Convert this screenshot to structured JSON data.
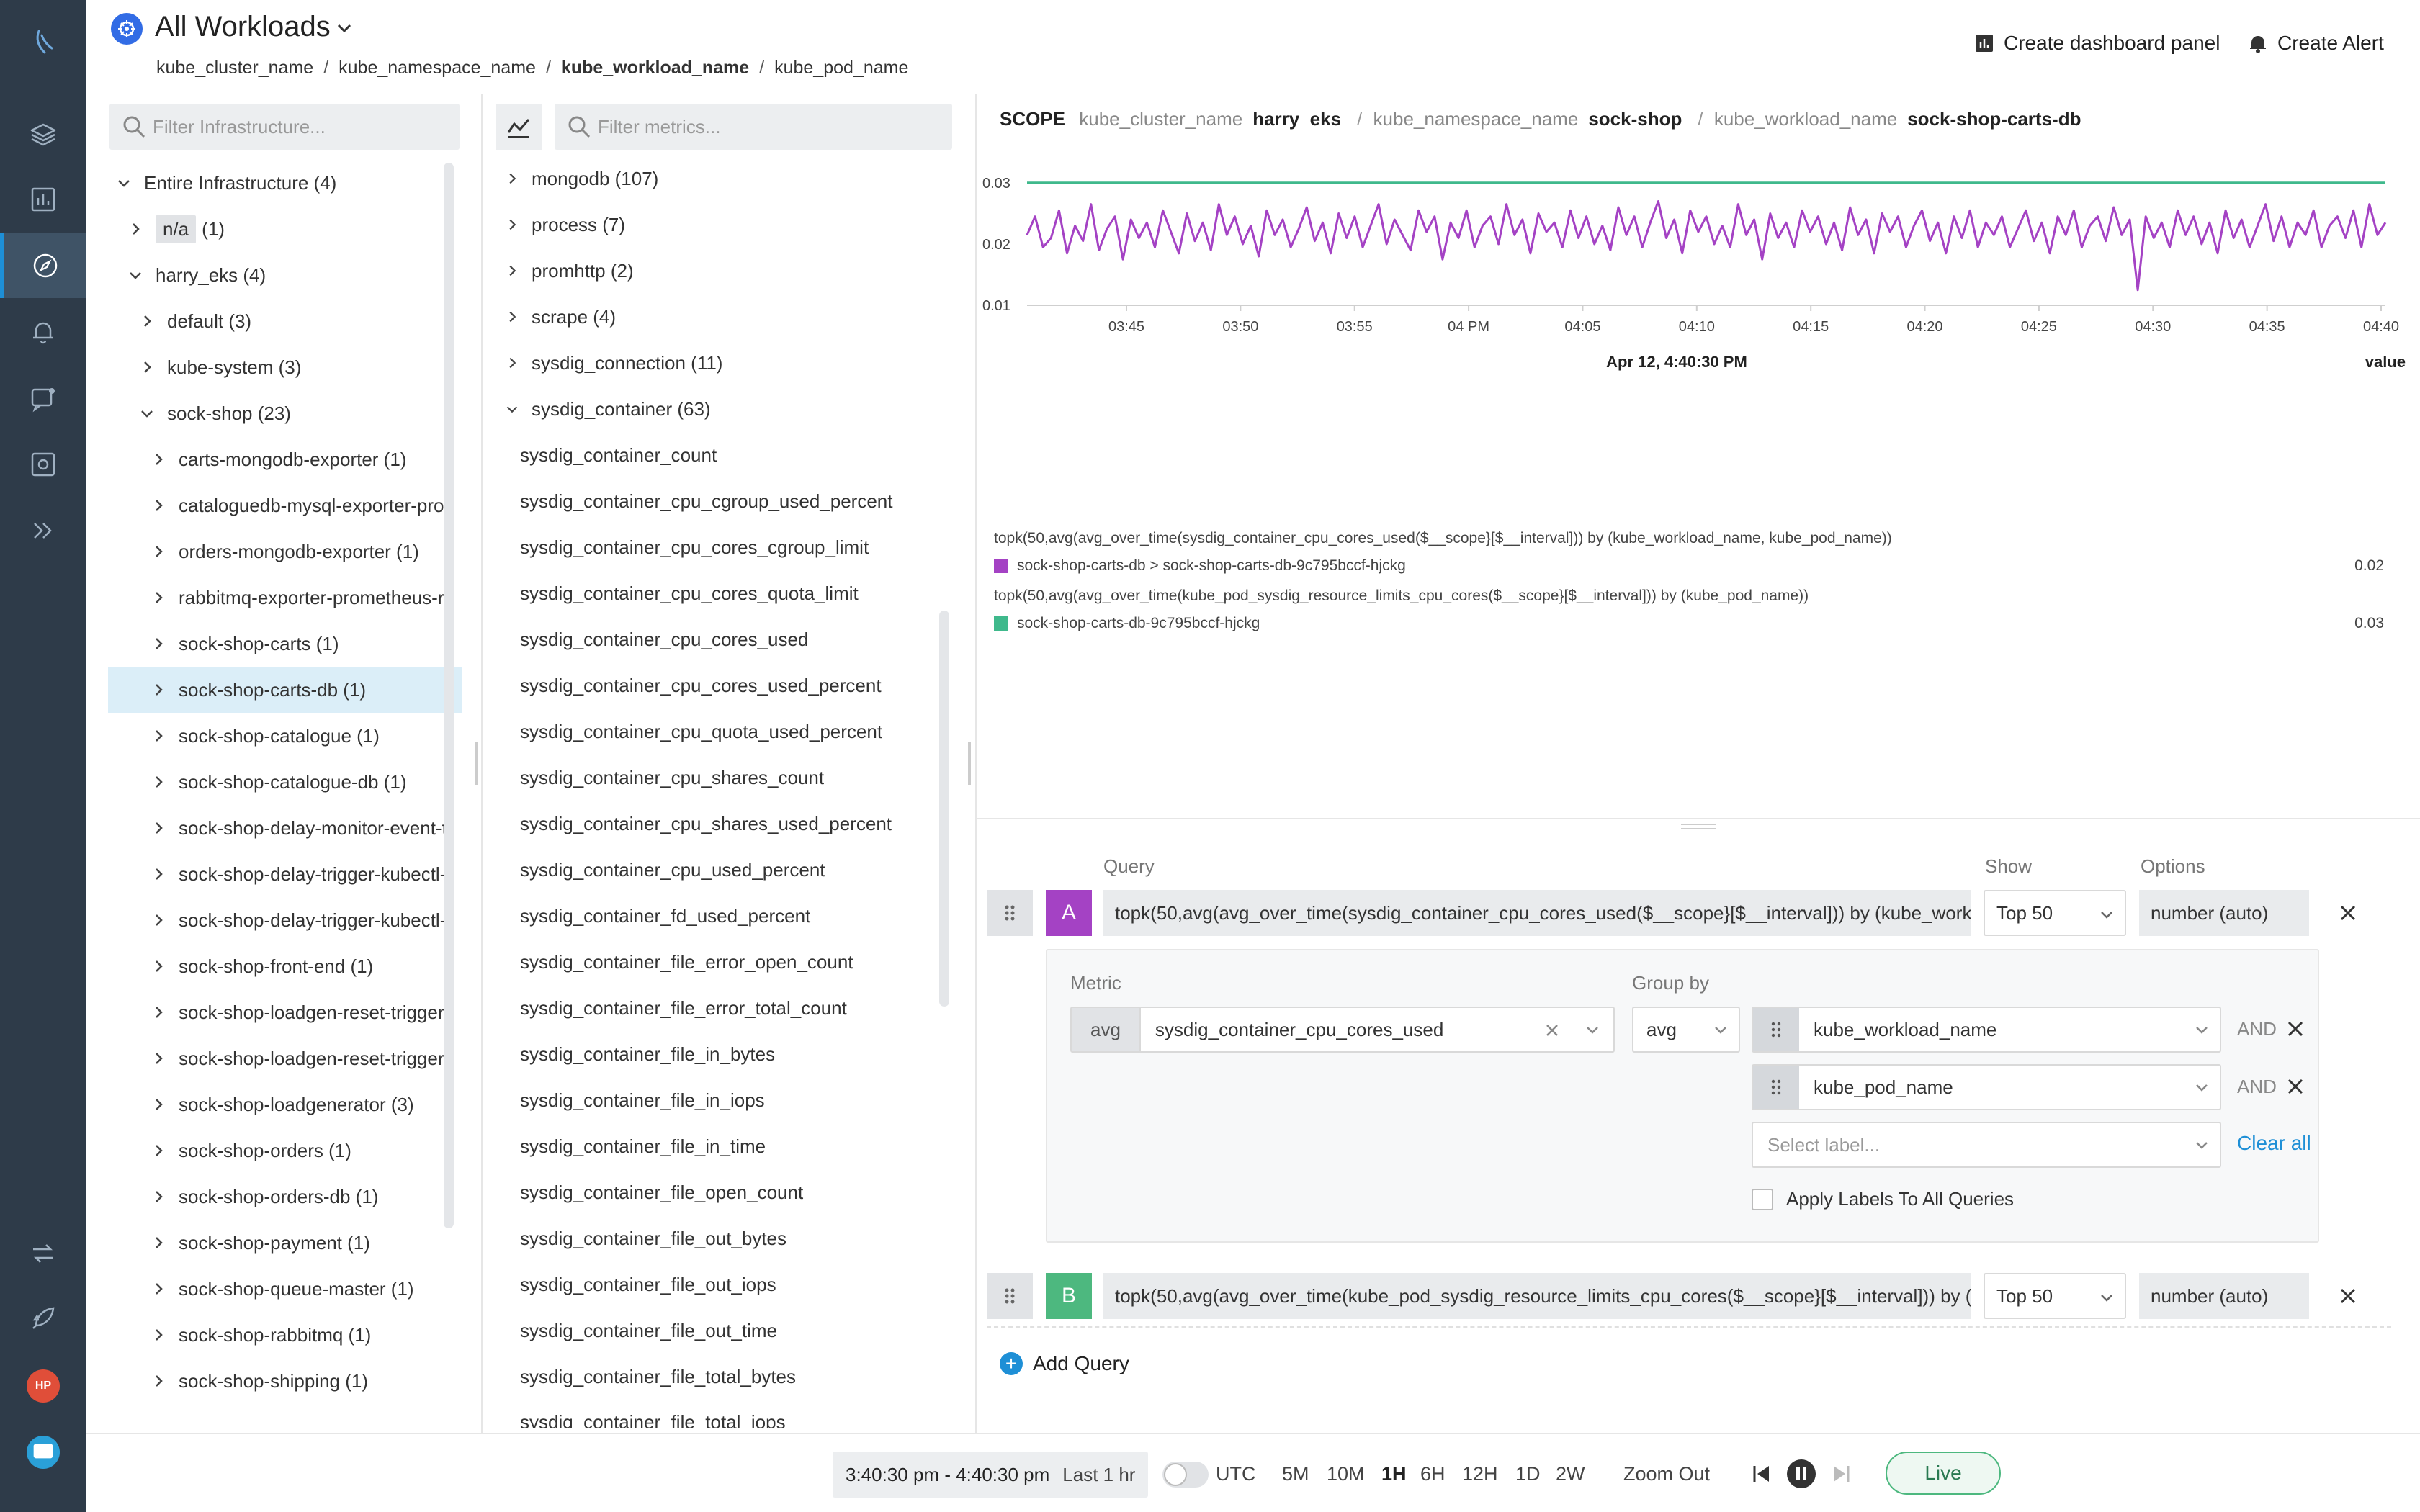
{
  "header": {
    "title": "All Workloads",
    "breadcrumb": [
      "kube_cluster_name",
      "kube_namespace_name",
      "kube_workload_name",
      "kube_pod_name"
    ],
    "create_panel_label": "Create dashboard panel",
    "create_alert_label": "Create Alert"
  },
  "nav": {
    "user_initials": "HP"
  },
  "infra": {
    "filter_placeholder": "Filter Infrastructure...",
    "tree": [
      {
        "label": "Entire Infrastructure (4)",
        "depth": 0,
        "open": true
      },
      {
        "label": "n/a",
        "count": "(1)",
        "depth": 1,
        "open": false,
        "tag": true
      },
      {
        "label": "harry_eks (4)",
        "depth": 1,
        "open": true
      },
      {
        "label": "default (3)",
        "depth": 2,
        "open": false
      },
      {
        "label": "kube-system (3)",
        "depth": 2,
        "open": false
      },
      {
        "label": "sock-shop (23)",
        "depth": 2,
        "open": true
      },
      {
        "label": "carts-mongodb-exporter (1)",
        "depth": 3,
        "open": false
      },
      {
        "label": "cataloguedb-mysql-exporter-pro",
        "depth": 3,
        "open": false
      },
      {
        "label": "orders-mongodb-exporter (1)",
        "depth": 3,
        "open": false
      },
      {
        "label": "rabbitmq-exporter-prometheus-r",
        "depth": 3,
        "open": false
      },
      {
        "label": "sock-shop-carts (1)",
        "depth": 3,
        "open": false
      },
      {
        "label": "sock-shop-carts-db (1)",
        "depth": 3,
        "open": false,
        "selected": true
      },
      {
        "label": "sock-shop-catalogue (1)",
        "depth": 3,
        "open": false
      },
      {
        "label": "sock-shop-catalogue-db (1)",
        "depth": 3,
        "open": false
      },
      {
        "label": "sock-shop-delay-monitor-event-t",
        "depth": 3,
        "open": false
      },
      {
        "label": "sock-shop-delay-trigger-kubectl-",
        "depth": 3,
        "open": false
      },
      {
        "label": "sock-shop-delay-trigger-kubectl-",
        "depth": 3,
        "open": false
      },
      {
        "label": "sock-shop-front-end (1)",
        "depth": 3,
        "open": false
      },
      {
        "label": "sock-shop-loadgen-reset-trigger-",
        "depth": 3,
        "open": false
      },
      {
        "label": "sock-shop-loadgen-reset-trigger-",
        "depth": 3,
        "open": false
      },
      {
        "label": "sock-shop-loadgenerator (3)",
        "depth": 3,
        "open": false
      },
      {
        "label": "sock-shop-orders (1)",
        "depth": 3,
        "open": false
      },
      {
        "label": "sock-shop-orders-db (1)",
        "depth": 3,
        "open": false
      },
      {
        "label": "sock-shop-payment (1)",
        "depth": 3,
        "open": false
      },
      {
        "label": "sock-shop-queue-master (1)",
        "depth": 3,
        "open": false
      },
      {
        "label": "sock-shop-rabbitmq (1)",
        "depth": 3,
        "open": false
      },
      {
        "label": "sock-shop-shipping (1)",
        "depth": 3,
        "open": false
      }
    ]
  },
  "metrics": {
    "filter_placeholder": "Filter metrics...",
    "groups": [
      {
        "label": "mongodb (107)",
        "open": false
      },
      {
        "label": "process (7)",
        "open": false
      },
      {
        "label": "promhttp (2)",
        "open": false
      },
      {
        "label": "scrape (4)",
        "open": false
      },
      {
        "label": "sysdig_connection (11)",
        "open": false
      },
      {
        "label": "sysdig_container (63)",
        "open": true
      }
    ],
    "leaves": [
      "sysdig_container_count",
      "sysdig_container_cpu_cgroup_used_percent",
      "sysdig_container_cpu_cores_cgroup_limit",
      "sysdig_container_cpu_cores_quota_limit",
      "sysdig_container_cpu_cores_used",
      "sysdig_container_cpu_cores_used_percent",
      "sysdig_container_cpu_quota_used_percent",
      "sysdig_container_cpu_shares_count",
      "sysdig_container_cpu_shares_used_percent",
      "sysdig_container_cpu_used_percent",
      "sysdig_container_fd_used_percent",
      "sysdig_container_file_error_open_count",
      "sysdig_container_file_error_total_count",
      "sysdig_container_file_in_bytes",
      "sysdig_container_file_in_iops",
      "sysdig_container_file_in_time",
      "sysdig_container_file_open_count",
      "sysdig_container_file_out_bytes",
      "sysdig_container_file_out_iops",
      "sysdig_container_file_out_time",
      "sysdig_container_file_total_bytes",
      "sysdig_container_file_total_iops"
    ]
  },
  "scope": {
    "label": "SCOPE",
    "pairs": [
      {
        "key": "kube_cluster_name",
        "value": "harry_eks"
      },
      {
        "key": "kube_namespace_name",
        "value": "sock-shop"
      },
      {
        "key": "kube_workload_name",
        "value": "sock-shop-carts-db"
      }
    ]
  },
  "chart_data": {
    "type": "line",
    "x_ticks": [
      "03:45",
      "03:50",
      "03:55",
      "04 PM",
      "04:05",
      "04:10",
      "04:15",
      "04:20",
      "04:25",
      "04:30",
      "04:35",
      "04:40"
    ],
    "y_ticks": [
      "0.01",
      "0.02",
      "0.03"
    ],
    "ylim": [
      0.01,
      0.03
    ],
    "time_label": "Apr 12, 4:40:30 PM",
    "value_header": "value",
    "series": [
      {
        "query": "topk(50,avg(avg_over_time(sysdig_container_cpu_cores_used($__scope}[$__interval])) by (kube_workload_name, kube_pod_name))",
        "name": "sock-shop-carts-db > sock-shop-carts-db-9c795bccf-hjckg",
        "color": "#a442c4",
        "value": "0.02",
        "values": [
          0.0215,
          0.0245,
          0.0195,
          0.021,
          0.0255,
          0.0185,
          0.023,
          0.0205,
          0.0265,
          0.019,
          0.0225,
          0.0245,
          0.0175,
          0.024,
          0.021,
          0.0235,
          0.0195,
          0.0255,
          0.022,
          0.0185,
          0.025,
          0.0205,
          0.0235,
          0.019,
          0.0265,
          0.0215,
          0.0245,
          0.02,
          0.023,
          0.018,
          0.0255,
          0.0215,
          0.024,
          0.0195,
          0.0225,
          0.026,
          0.0205,
          0.0235,
          0.0185,
          0.025,
          0.021,
          0.0245,
          0.0195,
          0.023,
          0.0265,
          0.02,
          0.024,
          0.0215,
          0.019,
          0.0255,
          0.022,
          0.0245,
          0.0175,
          0.0235,
          0.021,
          0.0255,
          0.0195,
          0.023,
          0.0245,
          0.02,
          0.0265,
          0.0215,
          0.024,
          0.0185,
          0.025,
          0.022,
          0.0235,
          0.0195,
          0.0255,
          0.021,
          0.0245,
          0.02,
          0.023,
          0.019,
          0.026,
          0.0215,
          0.0245,
          0.0195,
          0.0235,
          0.027,
          0.021,
          0.024,
          0.0185,
          0.0255,
          0.022,
          0.0245,
          0.02,
          0.023,
          0.0195,
          0.0265,
          0.0215,
          0.024,
          0.0175,
          0.025,
          0.021,
          0.0235,
          0.0195,
          0.0255,
          0.022,
          0.0245,
          0.02,
          0.0235,
          0.019,
          0.026,
          0.0215,
          0.024,
          0.0185,
          0.025,
          0.022,
          0.0245,
          0.0195,
          0.023,
          0.0255,
          0.0205,
          0.0235,
          0.0185,
          0.0245,
          0.021,
          0.0255,
          0.0195,
          0.0235,
          0.0215,
          0.0245,
          0.0195,
          0.0225,
          0.0255,
          0.0205,
          0.0235,
          0.0185,
          0.0245,
          0.0215,
          0.0255,
          0.0195,
          0.023,
          0.0245,
          0.0205,
          0.026,
          0.0215,
          0.024,
          0.0125,
          0.0245,
          0.021,
          0.0235,
          0.0195,
          0.0255,
          0.0215,
          0.0245,
          0.02,
          0.0235,
          0.0185,
          0.0255,
          0.021,
          0.024,
          0.0195,
          0.023,
          0.0265,
          0.0205,
          0.0245,
          0.0195,
          0.0235,
          0.0215,
          0.0255,
          0.0195,
          0.023,
          0.0245,
          0.021,
          0.0255,
          0.0195,
          0.0265,
          0.0215,
          0.0235
        ]
      },
      {
        "query": "topk(50,avg(avg_over_time(kube_pod_sysdig_resource_limits_cpu_cores($__scope}[$__interval])) by (kube_pod_name))",
        "name": "sock-shop-carts-db-9c795bccf-hjckg",
        "color": "#3fb98c",
        "value": "0.03",
        "values": [
          0.03,
          0.03
        ]
      }
    ]
  },
  "editor": {
    "col_query": "Query",
    "col_show": "Show",
    "col_options": "Options",
    "queries": [
      {
        "letter": "A",
        "color": "#a442c4",
        "text": "topk(50,avg(avg_over_time(sysdig_container_cpu_cores_used($__scope}[$__interval])) by (kube_workl...",
        "show": "Top 50",
        "options": "number (auto)"
      },
      {
        "letter": "B",
        "color": "#4db87f",
        "text": "topk(50,avg(avg_over_time(kube_pod_sysdig_resource_limits_cpu_cores($__scope}[$__interval])) by (k...",
        "show": "Top 50",
        "options": "number (auto)"
      }
    ],
    "detail": {
      "metric_label": "Metric",
      "group_by_label": "Group by",
      "metric_agg": "avg",
      "metric_name": "sysdig_container_cpu_cores_used",
      "group_agg": "avg",
      "labels": [
        "kube_workload_name",
        "kube_pod_name"
      ],
      "and_label": "AND",
      "select_placeholder": "Select label...",
      "clear_all": "Clear all",
      "apply_all": "Apply Labels To All Queries"
    },
    "add_query": "Add Query"
  },
  "timebar": {
    "range": "3:40:30 pm - 4:40:30 pm",
    "range_desc": "Last 1 hr",
    "utc": "UTC",
    "presets": [
      "5M",
      "10M",
      "1H",
      "6H",
      "12H",
      "1D",
      "2W"
    ],
    "active_preset": "1H",
    "zoom_out": "Zoom Out",
    "live": "Live"
  }
}
